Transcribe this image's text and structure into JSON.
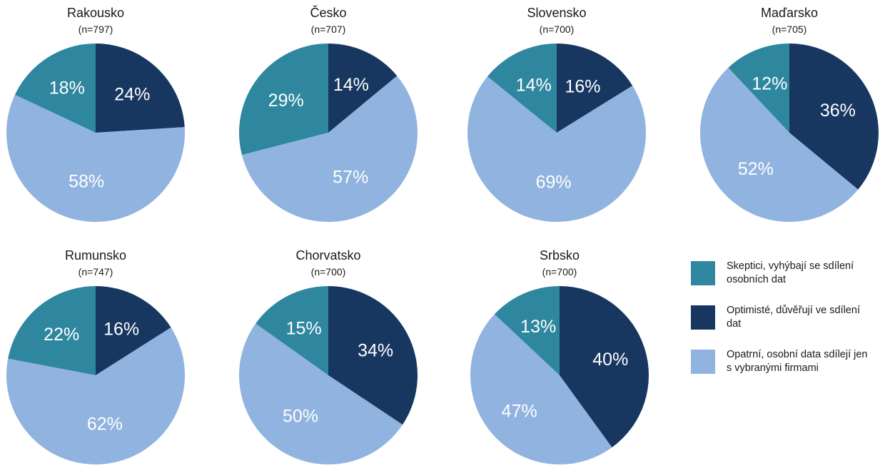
{
  "chart_data": {
    "type": "pie",
    "legend_position": "right",
    "categories": [
      {
        "key": "skeptici",
        "label": "Skeptici, vyhýbají se sdílení osobních dat",
        "color": "#2e879e"
      },
      {
        "key": "optimiste",
        "label": "Optimisté, důvěřují ve sdílení dat",
        "color": "#173760"
      },
      {
        "key": "opatrni",
        "label": "Opatrní, osobní data sdílejí jen s vybranými firmami",
        "color": "#91b3df"
      }
    ],
    "pies": [
      {
        "title": "Rakousko",
        "n": "(n=797)",
        "values": {
          "optimiste": 24,
          "opatrni": 58,
          "skeptici": 18
        }
      },
      {
        "title": "Česko",
        "n": "(n=707)",
        "values": {
          "optimiste": 14,
          "opatrni": 57,
          "skeptici": 29
        }
      },
      {
        "title": "Slovensko",
        "n": "(n=700)",
        "values": {
          "optimiste": 16,
          "opatrni": 69,
          "skeptici": 14
        }
      },
      {
        "title": "Maďarsko",
        "n": "(n=705)",
        "values": {
          "optimiste": 36,
          "opatrni": 52,
          "skeptici": 12
        }
      },
      {
        "title": "Rumunsko",
        "n": "(n=747)",
        "values": {
          "optimiste": 16,
          "opatrni": 62,
          "skeptici": 22
        }
      },
      {
        "title": "Chorvatsko",
        "n": "(n=700)",
        "values": {
          "optimiste": 34,
          "opatrni": 50,
          "skeptici": 15
        }
      },
      {
        "title": "Srbsko",
        "n": "(n=700)",
        "values": {
          "optimiste": 40,
          "opatrni": 47,
          "skeptici": 13
        }
      }
    ]
  }
}
